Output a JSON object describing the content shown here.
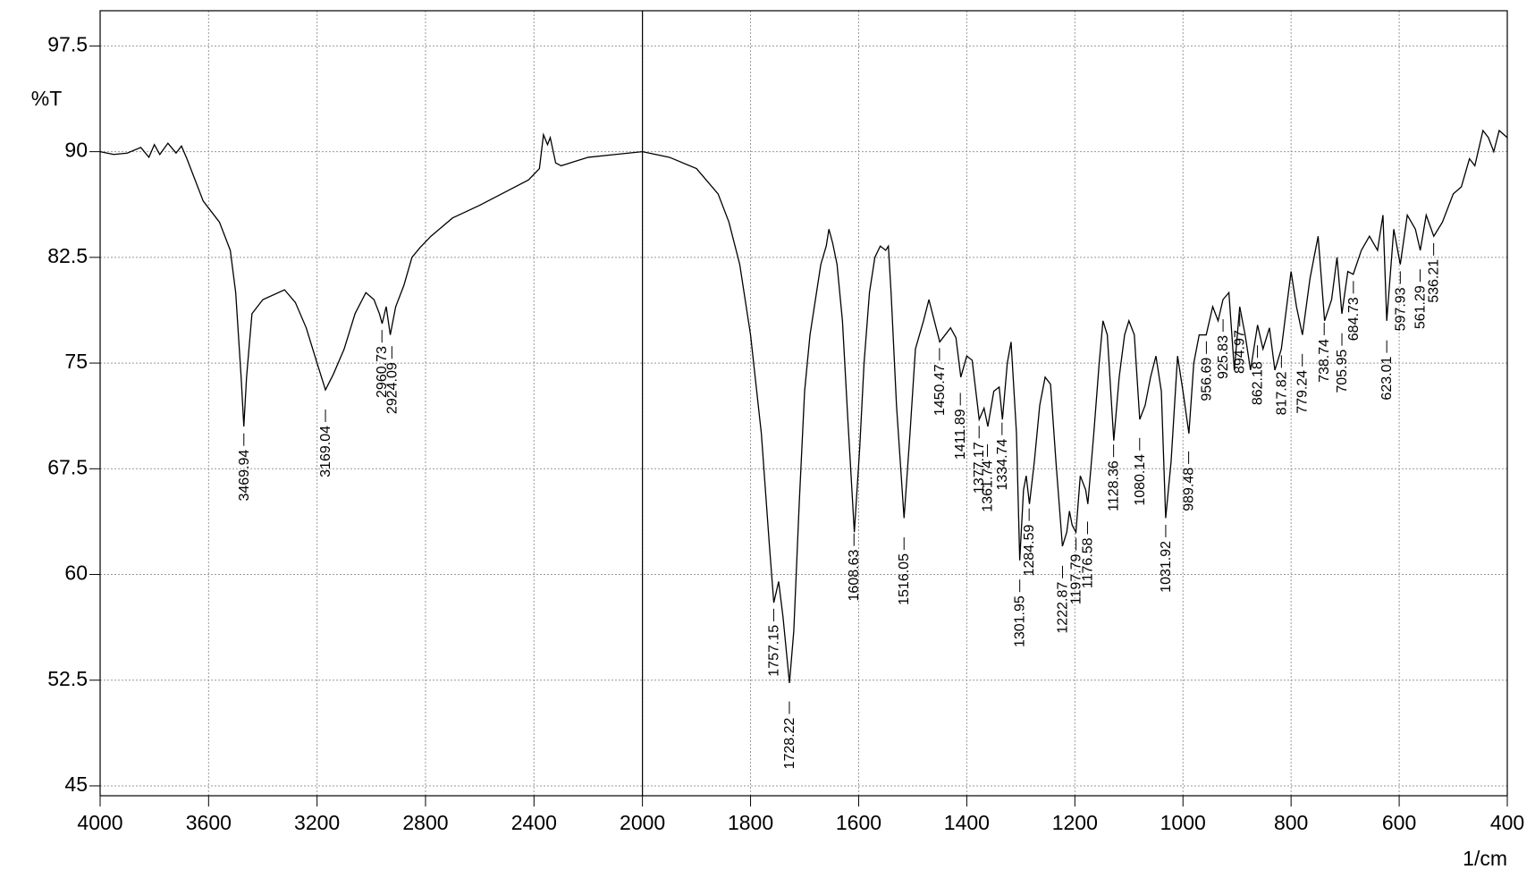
{
  "chart_data": {
    "type": "line",
    "y_label": "%T",
    "x_label": "1/cm",
    "color": "#000000",
    "grid": true,
    "xlim": [
      4000,
      400
    ],
    "x_break": 2000,
    "xticks": [
      4000,
      3600,
      3200,
      2800,
      2400,
      2000,
      1800,
      1600,
      1400,
      1200,
      1000,
      800,
      600,
      400
    ],
    "ylim": [
      44.3,
      100
    ],
    "yticks": [
      45,
      52.5,
      60,
      67.5,
      75,
      82.5,
      90,
      97.5
    ],
    "x": [
      4000,
      3950,
      3900,
      3850,
      3820,
      3800,
      3780,
      3750,
      3720,
      3700,
      3680,
      3650,
      3620,
      3600,
      3560,
      3520,
      3500,
      3480,
      3470,
      3460,
      3440,
      3400,
      3320,
      3280,
      3240,
      3200,
      3169,
      3140,
      3100,
      3060,
      3020,
      2990,
      2970,
      2960,
      2945,
      2930,
      2910,
      2880,
      2850,
      2820,
      2780,
      2700,
      2600,
      2500,
      2420,
      2380,
      2365,
      2350,
      2340,
      2320,
      2300,
      2200,
      2100,
      2000,
      1950,
      1900,
      1860,
      1840,
      1820,
      1800,
      1780,
      1765,
      1757,
      1748,
      1740,
      1728,
      1720,
      1710,
      1700,
      1690,
      1680,
      1670,
      1660,
      1655,
      1648,
      1640,
      1630,
      1620,
      1608,
      1598,
      1590,
      1580,
      1570,
      1560,
      1550,
      1545,
      1540,
      1530,
      1516,
      1505,
      1495,
      1480,
      1470,
      1460,
      1450,
      1440,
      1430,
      1420,
      1411,
      1400,
      1390,
      1377,
      1368,
      1361,
      1350,
      1340,
      1334,
      1325,
      1318,
      1308,
      1302,
      1295,
      1290,
      1284,
      1275,
      1265,
      1255,
      1245,
      1235,
      1223,
      1215,
      1210,
      1205,
      1198,
      1190,
      1180,
      1176,
      1165,
      1155,
      1148,
      1140,
      1128,
      1118,
      1108,
      1100,
      1090,
      1080,
      1070,
      1060,
      1050,
      1040,
      1032,
      1022,
      1010,
      1000,
      989,
      980,
      970,
      957,
      945,
      935,
      926,
      915,
      905,
      895,
      885,
      875,
      862,
      852,
      840,
      830,
      818,
      800,
      790,
      779,
      765,
      750,
      738,
      725,
      715,
      706,
      695,
      685,
      670,
      655,
      640,
      630,
      623,
      610,
      598,
      585,
      570,
      561,
      550,
      536,
      520,
      500,
      485,
      470,
      460,
      445,
      435,
      425,
      415,
      400
    ],
    "values": [
      90.0,
      89.8,
      89.9,
      90.3,
      89.6,
      90.5,
      89.8,
      90.6,
      89.9,
      90.4,
      89.5,
      88,
      86.5,
      86,
      85,
      83,
      80,
      74,
      70.5,
      74,
      78.5,
      79.5,
      80.2,
      79.3,
      77.5,
      75,
      73.1,
      74.2,
      76,
      78.5,
      80,
      79.5,
      78.5,
      77.8,
      79,
      77,
      79,
      80.5,
      82.5,
      83.2,
      84,
      85.3,
      86.2,
      87.2,
      88,
      88.8,
      91.2,
      90.5,
      91,
      89.2,
      89,
      89.6,
      89.8,
      90,
      89.6,
      88.8,
      87,
      85,
      82,
      77,
      70,
      62,
      58,
      59.5,
      57,
      52.3,
      56,
      65,
      73,
      77,
      79.5,
      82,
      83.3,
      84.5,
      83.5,
      82,
      78,
      71,
      63,
      69,
      75,
      80,
      82.5,
      83.3,
      83,
      83.3,
      80,
      72,
      64,
      70,
      76,
      78,
      79.5,
      78,
      76.5,
      77,
      77.5,
      76.8,
      74,
      75.5,
      75.2,
      71,
      71.8,
      70.5,
      73,
      73.3,
      71,
      75,
      76.5,
      70,
      61,
      66,
      67,
      65,
      68,
      72,
      74,
      73.5,
      68,
      62,
      63,
      64.5,
      63.5,
      63,
      67,
      66,
      65,
      70,
      75,
      78,
      77,
      69.5,
      74,
      77,
      78,
      77,
      71,
      72,
      74,
      75.5,
      73,
      64,
      68,
      75.5,
      73,
      70,
      75,
      77,
      77,
      79,
      78,
      79.5,
      80,
      74.5,
      79,
      77,
      74.5,
      77.7,
      76,
      77.5,
      74.5,
      76,
      81.5,
      79,
      77,
      81,
      84,
      78,
      79.5,
      82.5,
      78.5,
      81.5,
      81.3,
      83,
      84,
      83,
      85.5,
      78,
      84.5,
      82,
      85.5,
      84.5,
      83,
      85.5,
      84,
      85,
      87,
      87.5,
      89.5,
      89,
      91.5,
      91,
      90,
      91.5,
      91
    ],
    "peaks": [
      3469.94,
      3169.04,
      2960.73,
      2924.09,
      1757.15,
      1728.22,
      1608.63,
      1516.05,
      1450.47,
      1411.89,
      1377.17,
      1361.74,
      1334.74,
      1301.95,
      1284.59,
      1222.87,
      1197.79,
      1176.58,
      1128.36,
      1080.14,
      1031.92,
      989.48,
      956.69,
      925.83,
      894.97,
      862.18,
      817.82,
      779.24,
      738.74,
      705.95,
      684.73,
      623.01,
      597.93,
      561.29,
      536.21
    ]
  }
}
